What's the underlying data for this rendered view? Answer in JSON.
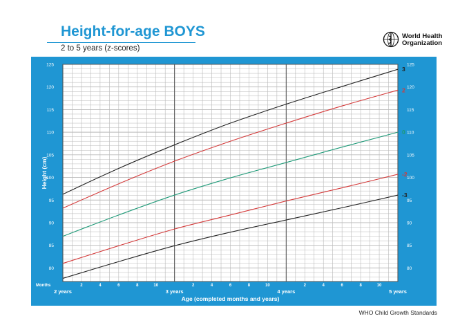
{
  "header": {
    "title": "Height-for-age BOYS",
    "subtitle": "2 to 5 years (z-scores)",
    "logo_line1": "World Health",
    "logo_line2": "Organization",
    "logo_icon": "who-emblem-icon"
  },
  "footer": {
    "text": "WHO Child Growth Standards"
  },
  "colors": {
    "frame": "#1f96d3",
    "plot_bg": "#ffffff",
    "minor_grid": "#b9b9b9",
    "major_grid": "#555555",
    "sd3": "#222222",
    "sd2": "#d43a3a",
    "median": "#1f9a78"
  },
  "chart_data": {
    "type": "line",
    "title": "Height-for-age BOYS",
    "subtitle": "2 to 5 years (z-scores)",
    "xlabel": "Age (completed months and years)",
    "ylabel": "Height (cm)",
    "x_months_label": "Months",
    "xlim": [
      24,
      60
    ],
    "ylim": [
      77,
      125
    ],
    "y_ticks": [
      80,
      85,
      90,
      95,
      100,
      105,
      110,
      115,
      120,
      125
    ],
    "x_year_ticks": [
      {
        "x": 24,
        "label": "2 years"
      },
      {
        "x": 36,
        "label": "3 years"
      },
      {
        "x": 48,
        "label": "4 years"
      },
      {
        "x": 60,
        "label": "5 years"
      }
    ],
    "x_month_ticks": [
      {
        "x": 26,
        "label": "2"
      },
      {
        "x": 28,
        "label": "4"
      },
      {
        "x": 30,
        "label": "6"
      },
      {
        "x": 32,
        "label": "8"
      },
      {
        "x": 34,
        "label": "10"
      },
      {
        "x": 38,
        "label": "2"
      },
      {
        "x": 40,
        "label": "4"
      },
      {
        "x": 42,
        "label": "6"
      },
      {
        "x": 44,
        "label": "8"
      },
      {
        "x": 46,
        "label": "10"
      },
      {
        "x": 50,
        "label": "2"
      },
      {
        "x": 52,
        "label": "4"
      },
      {
        "x": 54,
        "label": "6"
      },
      {
        "x": 56,
        "label": "8"
      },
      {
        "x": 58,
        "label": "10"
      }
    ],
    "grid": true,
    "x": [
      24,
      30,
      36,
      42,
      48,
      54,
      60
    ],
    "series": [
      {
        "name": "3",
        "color": "#222222",
        "values": [
          96.3,
          102.0,
          107.2,
          112.0,
          116.2,
          120.1,
          123.9
        ]
      },
      {
        "name": "2",
        "color": "#d43a3a",
        "values": [
          93.2,
          98.6,
          103.6,
          108.0,
          112.0,
          115.8,
          119.3
        ]
      },
      {
        "name": "0",
        "color": "#1f9a78",
        "values": [
          87.0,
          91.7,
          96.1,
          99.9,
          103.3,
          106.7,
          110.0
        ]
      },
      {
        "name": "-2",
        "color": "#d43a3a",
        "values": [
          81.0,
          84.9,
          88.6,
          91.7,
          94.8,
          97.7,
          100.7
        ]
      },
      {
        "name": "-3",
        "color": "#222222",
        "values": [
          77.7,
          81.4,
          84.9,
          87.9,
          90.6,
          93.3,
          96.1
        ]
      }
    ]
  }
}
